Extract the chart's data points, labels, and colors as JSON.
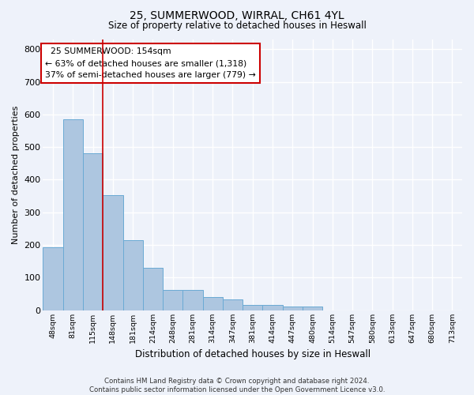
{
  "title_line1": "25, SUMMERWOOD, WIRRAL, CH61 4YL",
  "title_line2": "Size of property relative to detached houses in Heswall",
  "xlabel": "Distribution of detached houses by size in Heswall",
  "ylabel": "Number of detached properties",
  "categories": [
    "48sqm",
    "81sqm",
    "115sqm",
    "148sqm",
    "181sqm",
    "214sqm",
    "248sqm",
    "281sqm",
    "314sqm",
    "347sqm",
    "381sqm",
    "414sqm",
    "447sqm",
    "480sqm",
    "514sqm",
    "547sqm",
    "580sqm",
    "613sqm",
    "647sqm",
    "680sqm",
    "713sqm"
  ],
  "values": [
    192,
    585,
    480,
    353,
    215,
    130,
    62,
    62,
    40,
    32,
    15,
    15,
    10,
    10,
    0,
    0,
    0,
    0,
    0,
    0,
    0
  ],
  "bar_color": "#adc6e0",
  "bar_edge_color": "#6aaad4",
  "background_color": "#eef2fa",
  "grid_color": "#ffffff",
  "annotation_text": "  25 SUMMERWOOD: 154sqm\n← 63% of detached houses are smaller (1,318)\n37% of semi-detached houses are larger (779) →",
  "vline_position": 2.5,
  "vline_color": "#cc0000",
  "annotation_box_color": "#cc0000",
  "ylim": [
    0,
    830
  ],
  "yticks": [
    0,
    100,
    200,
    300,
    400,
    500,
    600,
    700,
    800
  ],
  "footnote": "Contains HM Land Registry data © Crown copyright and database right 2024.\nContains public sector information licensed under the Open Government Licence v3.0."
}
